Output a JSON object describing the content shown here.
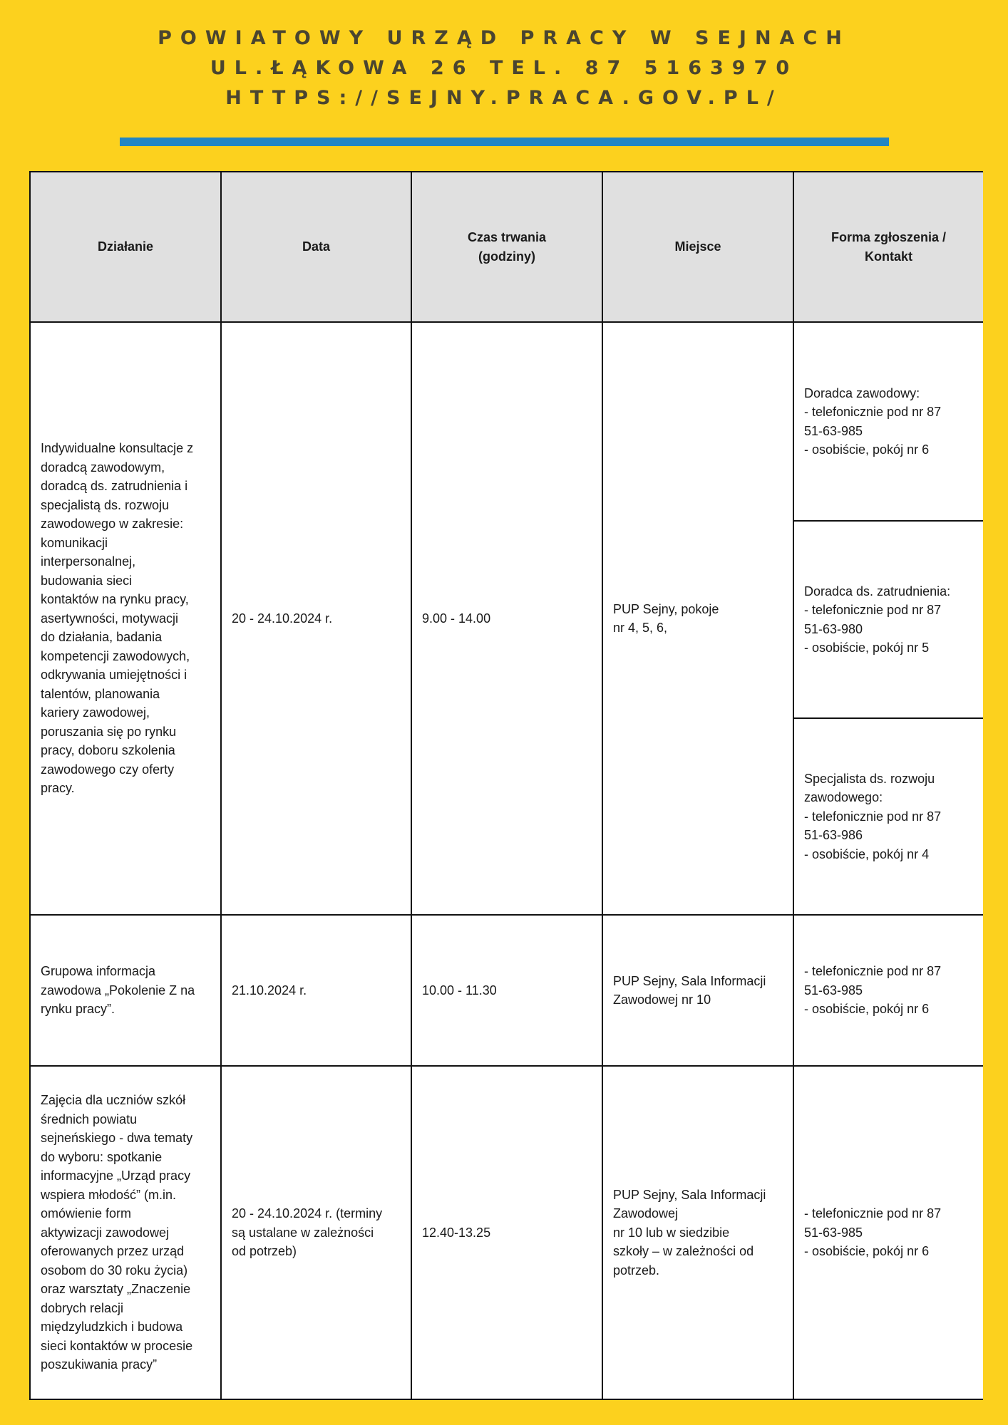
{
  "header": {
    "line1": "POWIATOWY URZĄD PRACY W SEJNACH",
    "line2": "UL.ŁĄKOWA 26 TEL. 87 5163970",
    "line3": "HTTPS://SEJNY.PRACA.GOV.PL/",
    "accent_color": "#2286c3",
    "background_color": "#fcd11e"
  },
  "table": {
    "columns": [
      "Działanie",
      "Data",
      "Czas trwania\n(godziny)",
      "Miejsce",
      "Forma zgłoszenia /\nKontakt"
    ],
    "rows": [
      {
        "dzialanie": "Indywidualne konsultacje z\ndoradcą zawodowym,\ndoradcą ds. zatrudnienia i\nspecjalistą ds. rozwoju\nzawodowego w zakresie:\nkomunikacji\ninterpersonalnej,\nbudowania sieci\nkontaktów na rynku pracy,\nasertywności, motywacji\ndo działania, badania\nkompetencji zawodowych,\nodkrywania umiejętności i\ntalentów, planowania\nkariery zawodowej,\nporuszania się po rynku\npracy, doboru szkolenia\nzawodowego czy oferty\npracy.",
        "data": "20 - 24.10.2024 r.",
        "czas": "9.00 - 14.00",
        "miejsce": "PUP Sejny, pokoje\nnr 4, 5, 6,",
        "kontakt": [
          "Doradca zawodowy:\n- telefonicznie pod nr 87\n51-63-985\n- osobiście, pokój nr 6",
          "Doradca ds. zatrudnienia:\n- telefonicznie pod nr 87\n51-63-980\n- osobiście, pokój nr 5",
          "Specjalista ds. rozwoju\nzawodowego:\n- telefonicznie pod nr 87\n51-63-986\n- osobiście, pokój nr 4"
        ]
      },
      {
        "dzialanie": "Grupowa informacja\nzawodowa „Pokolenie Z na\nrynku pracy”.",
        "data": "21.10.2024 r.",
        "czas": "10.00 - 11.30",
        "miejsce": "PUP Sejny, Sala Informacji\nZawodowej nr 10",
        "kontakt": "- telefonicznie pod nr 87\n51-63-985\n- osobiście, pokój nr 6"
      },
      {
        "dzialanie": "Zajęcia dla uczniów szkół\nśrednich powiatu\nsejneńskiego - dwa tematy\ndo wyboru: spotkanie\ninformacyjne „Urząd pracy\nwspiera młodość” (m.in.\nomówienie form\naktywizacji zawodowej\noferowanych przez urząd\nosobom do 30 roku życia)\noraz warsztaty „Znaczenie\ndobrych relacji\nmiędzyludzkich i budowa\nsieci kontaktów w procesie\nposzukiwania pracy”",
        "data": "20 - 24.10.2024 r. (terminy\nsą ustalane w zależności\nod potrzeb)",
        "czas": "12.40-13.25",
        "miejsce": "PUP Sejny, Sala Informacji\nZawodowej\nnr 10 lub w siedzibie\nszkoły – w zależności od\npotrzeb.",
        "kontakt": "- telefonicznie pod nr 87\n51-63-985\n- osobiście, pokój nr 6"
      }
    ]
  }
}
